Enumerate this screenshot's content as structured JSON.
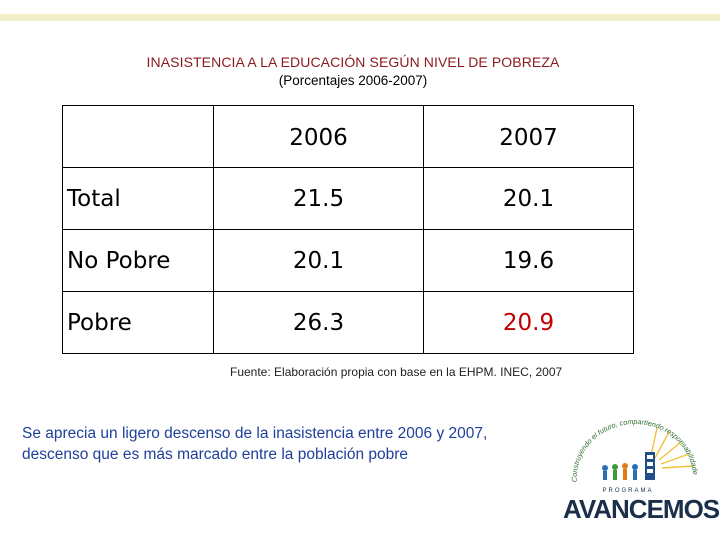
{
  "header": {
    "title": "INASISTENCIA A LA EDUCACIÓN SEGÚN NIVEL DE POBREZA",
    "subtitle": "(Porcentajes 2006-2007)"
  },
  "table": {
    "columns": [
      "",
      "2006",
      "2007"
    ],
    "rows": [
      {
        "label": "Total",
        "values": [
          "21.5",
          "20.1"
        ]
      },
      {
        "label": "No Pobre",
        "values": [
          "20.1",
          "19.6"
        ]
      },
      {
        "label": "Pobre",
        "values": [
          "26.3",
          "20.9"
        ]
      }
    ],
    "highlight_color": "#c00000"
  },
  "source": "Fuente: Elaboración propia con base en la EHPM. INEC, 2007",
  "note": "Se aprecia un ligero descenso de la inasistencia entre 2006 y 2007, descenso que es más marcado entre la población pobre",
  "logo": {
    "slogan": "Construyendo el futuro, compartiendo responsabilidades",
    "program": "PROGRAMA",
    "name": "AVANCEMOS"
  },
  "colors": {
    "title": "#8b1a1a",
    "note": "#1f3f9a",
    "top_bar": "#f2f0c8"
  }
}
